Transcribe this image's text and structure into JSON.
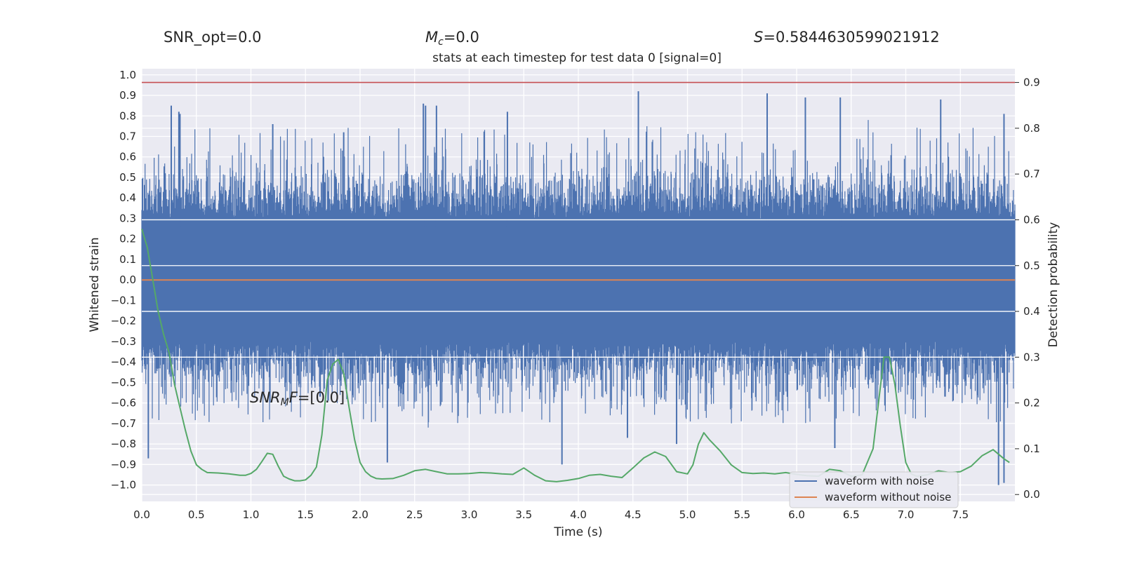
{
  "header": {
    "snr_opt": "SNR_opt=0.0",
    "mc_var": "M",
    "mc_sub": "c",
    "mc_val": "=0.0",
    "s_var": "S",
    "s_val": "=0.5844630599021912"
  },
  "annotation": {
    "var": "SNR",
    "sub": "M",
    "var2": "F",
    "val": "=[0.0]"
  },
  "chart_data": {
    "type": "line",
    "title": "stats at each timestep for test data 0 [signal=0]",
    "xlabel": "Time (s)",
    "ylabel": "Whitened strain",
    "y2label": "Detection probability",
    "xlim": [
      0,
      8
    ],
    "ylim": [
      -1.08,
      1.03
    ],
    "y2lim": [
      -0.015,
      0.93
    ],
    "x_ticks": [
      0.0,
      0.5,
      1.0,
      1.5,
      2.0,
      2.5,
      3.0,
      3.5,
      4.0,
      4.5,
      5.0,
      5.5,
      6.0,
      6.5,
      7.0,
      7.5
    ],
    "x_tick_labels": [
      "0.0",
      "0.5",
      "1.0",
      "1.5",
      "2.0",
      "2.5",
      "3.0",
      "3.5",
      "4.0",
      "4.5",
      "5.0",
      "5.5",
      "6.0",
      "6.5",
      "7.0",
      "7.5"
    ],
    "y_ticks": [
      1.0,
      0.9,
      0.8,
      0.7,
      0.6,
      0.5,
      0.4,
      0.3,
      0.2,
      0.1,
      0.0,
      -0.1,
      -0.2,
      -0.3,
      -0.4,
      -0.5,
      -0.6,
      -0.7,
      -0.8,
      -0.9,
      -1.0
    ],
    "y_tick_labels": [
      "1.0",
      "0.9",
      "0.8",
      "0.7",
      "0.6",
      "0.5",
      "0.4",
      "0.3",
      "0.2",
      "0.1",
      "0.0",
      "−0.1",
      "−0.2",
      "−0.3",
      "−0.4",
      "−0.5",
      "−0.6",
      "−0.7",
      "−0.8",
      "−0.9",
      "−1.0"
    ],
    "y2_ticks": [
      0.9,
      0.8,
      0.7,
      0.6,
      0.5,
      0.4,
      0.3,
      0.2,
      0.1,
      0.0
    ],
    "y2_tick_labels": [
      "0.9",
      "0.8",
      "0.7",
      "0.6",
      "0.5",
      "0.4",
      "0.3",
      "0.2",
      "0.1",
      "0.0"
    ],
    "grid": true,
    "legend_position": "lower-right",
    "threshold": 0.9,
    "colors": {
      "noise": "#4c72b0",
      "clean": "#dd8452",
      "probability": "#55a868",
      "threshold": "#c44e52",
      "plot_bg": "#eaeaf2",
      "grid": "#ffffff"
    },
    "series": [
      {
        "name": "waveform with noise",
        "description": "dense noisy whitened strain, peaks reaching ~0.92 and ~-1.0",
        "peaks": [
          [
            0.27,
            0.85
          ],
          [
            0.34,
            0.82
          ],
          [
            0.35,
            0.81
          ],
          [
            1.2,
            0.76
          ],
          [
            1.85,
            0.72
          ],
          [
            2.58,
            0.86
          ],
          [
            2.6,
            0.85
          ],
          [
            2.7,
            0.85
          ],
          [
            3.35,
            0.82
          ],
          [
            4.55,
            0.92
          ],
          [
            5.73,
            0.91
          ],
          [
            6.08,
            0.89
          ],
          [
            6.4,
            0.89
          ],
          [
            7.32,
            0.88
          ],
          [
            7.9,
            0.81
          ]
        ],
        "troughs": [
          [
            0.06,
            -0.87
          ],
          [
            2.25,
            -0.89
          ],
          [
            3.85,
            -0.9
          ],
          [
            4.45,
            -0.77
          ],
          [
            4.9,
            -0.8
          ],
          [
            6.35,
            -0.82
          ],
          [
            7.85,
            -1.0
          ],
          [
            7.9,
            -0.99
          ]
        ]
      },
      {
        "name": "waveform without noise",
        "x": [
          0,
          8
        ],
        "values": [
          0.0,
          0.0
        ]
      },
      {
        "name": "",
        "axis": "y2",
        "x": [
          0.0,
          0.05,
          0.1,
          0.15,
          0.2,
          0.25,
          0.3,
          0.35,
          0.4,
          0.45,
          0.5,
          0.55,
          0.6,
          0.7,
          0.8,
          0.9,
          0.95,
          1.0,
          1.05,
          1.1,
          1.15,
          1.2,
          1.25,
          1.3,
          1.35,
          1.4,
          1.45,
          1.5,
          1.55,
          1.6,
          1.65,
          1.7,
          1.75,
          1.8,
          1.85,
          1.9,
          1.95,
          2.0,
          2.05,
          2.1,
          2.15,
          2.2,
          2.3,
          2.4,
          2.5,
          2.6,
          2.7,
          2.8,
          2.9,
          3.0,
          3.1,
          3.2,
          3.3,
          3.4,
          3.5,
          3.6,
          3.7,
          3.8,
          3.9,
          4.0,
          4.1,
          4.2,
          4.3,
          4.4,
          4.5,
          4.6,
          4.7,
          4.8,
          4.9,
          5.0,
          5.05,
          5.1,
          5.15,
          5.2,
          5.3,
          5.4,
          5.5,
          5.6,
          5.7,
          5.8,
          5.9,
          6.0,
          6.1,
          6.2,
          6.3,
          6.4,
          6.5,
          6.6,
          6.7,
          6.75,
          6.8,
          6.85,
          6.9,
          6.95,
          7.0,
          7.05,
          7.1,
          7.2,
          7.3,
          7.4,
          7.5,
          7.6,
          7.7,
          7.8,
          7.9,
          7.95
        ],
        "values": [
          0.58,
          0.54,
          0.47,
          0.4,
          0.35,
          0.31,
          0.24,
          0.19,
          0.14,
          0.095,
          0.065,
          0.055,
          0.048,
          0.047,
          0.045,
          0.042,
          0.042,
          0.046,
          0.055,
          0.072,
          0.09,
          0.088,
          0.062,
          0.04,
          0.034,
          0.03,
          0.03,
          0.032,
          0.042,
          0.06,
          0.13,
          0.25,
          0.285,
          0.295,
          0.265,
          0.19,
          0.12,
          0.07,
          0.05,
          0.04,
          0.035,
          0.034,
          0.035,
          0.042,
          0.052,
          0.055,
          0.05,
          0.045,
          0.045,
          0.046,
          0.048,
          0.047,
          0.045,
          0.044,
          0.058,
          0.042,
          0.03,
          0.028,
          0.031,
          0.035,
          0.042,
          0.044,
          0.04,
          0.037,
          0.058,
          0.08,
          0.093,
          0.083,
          0.05,
          0.045,
          0.065,
          0.11,
          0.135,
          0.12,
          0.095,
          0.065,
          0.048,
          0.046,
          0.047,
          0.045,
          0.048,
          0.044,
          0.041,
          0.04,
          0.055,
          0.052,
          0.04,
          0.043,
          0.1,
          0.2,
          0.3,
          0.3,
          0.24,
          0.15,
          0.07,
          0.045,
          0.04,
          0.043,
          0.052,
          0.048,
          0.05,
          0.062,
          0.085,
          0.098,
          0.078,
          0.07
        ]
      }
    ]
  }
}
